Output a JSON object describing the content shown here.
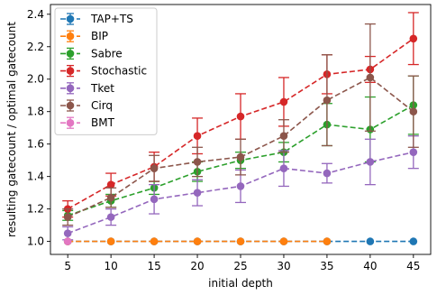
{
  "chart_data": {
    "type": "line",
    "xlabel": "initial depth",
    "ylabel": "resulting gatecount / optimal gatecount",
    "xlim": [
      3,
      47
    ],
    "ylim": [
      0.92,
      2.46
    ],
    "xticks": [
      5,
      10,
      15,
      20,
      25,
      30,
      35,
      40,
      45
    ],
    "yticks": [
      1.0,
      1.2,
      1.4,
      1.6,
      1.8,
      2.0,
      2.2,
      2.4
    ],
    "ytick_labels": [
      "1.0",
      "1.2",
      "1.4",
      "1.6",
      "1.8",
      "2.0",
      "2.2",
      "2.4"
    ],
    "legend_position": "top-left",
    "grid": false,
    "series": [
      {
        "name": "TAP+TS",
        "color": "#1f77b4",
        "x": [
          5,
          10,
          15,
          20,
          25,
          30,
          35,
          40,
          45
        ],
        "y": [
          1.0,
          1.0,
          1.0,
          1.0,
          1.0,
          1.0,
          1.0,
          1.0,
          1.0
        ],
        "yerr": [
          0,
          0,
          0,
          0,
          0,
          0,
          0,
          0,
          0
        ]
      },
      {
        "name": "BIP",
        "color": "#ff7f0e",
        "x": [
          5,
          10,
          15,
          20,
          25,
          30,
          35
        ],
        "y": [
          1.0,
          1.0,
          1.0,
          1.0,
          1.0,
          1.0,
          1.0
        ],
        "yerr": [
          0,
          0,
          0,
          0,
          0,
          0,
          0
        ]
      },
      {
        "name": "Sabre",
        "color": "#2ca02c",
        "x": [
          5,
          10,
          15,
          20,
          25,
          30,
          35,
          40,
          45
        ],
        "y": [
          1.16,
          1.25,
          1.33,
          1.43,
          1.5,
          1.55,
          1.72,
          1.69,
          1.84
        ],
        "yerr": [
          0.03,
          0.04,
          0.04,
          0.06,
          0.05,
          0.06,
          0.13,
          0.2,
          0.18
        ]
      },
      {
        "name": "Stochastic",
        "color": "#d62728",
        "x": [
          5,
          10,
          15,
          20,
          25,
          30,
          35,
          40,
          45
        ],
        "y": [
          1.2,
          1.35,
          1.46,
          1.65,
          1.77,
          1.86,
          2.03,
          2.06,
          2.25
        ],
        "yerr": [
          0.05,
          0.07,
          0.09,
          0.11,
          0.14,
          0.15,
          0.12,
          0.08,
          0.16
        ]
      },
      {
        "name": "Tket",
        "color": "#9467bd",
        "x": [
          5,
          10,
          15,
          20,
          25,
          30,
          35,
          40,
          45
        ],
        "y": [
          1.05,
          1.15,
          1.26,
          1.3,
          1.34,
          1.45,
          1.42,
          1.49,
          1.55
        ],
        "yerr": [
          0.04,
          0.05,
          0.09,
          0.08,
          0.1,
          0.11,
          0.06,
          0.14,
          0.1
        ]
      },
      {
        "name": "Cirq",
        "color": "#8c564b",
        "x": [
          5,
          10,
          15,
          20,
          25,
          30,
          35,
          40,
          45
        ],
        "y": [
          1.15,
          1.27,
          1.45,
          1.49,
          1.52,
          1.65,
          1.87,
          2.01,
          1.8
        ],
        "yerr": [
          0.05,
          0.06,
          0.08,
          0.09,
          0.11,
          0.1,
          0.28,
          0.33,
          0.22
        ]
      },
      {
        "name": "BMT",
        "color": "#e377c2",
        "x": [
          5
        ],
        "y": [
          1.0
        ],
        "yerr": [
          0
        ]
      }
    ]
  }
}
